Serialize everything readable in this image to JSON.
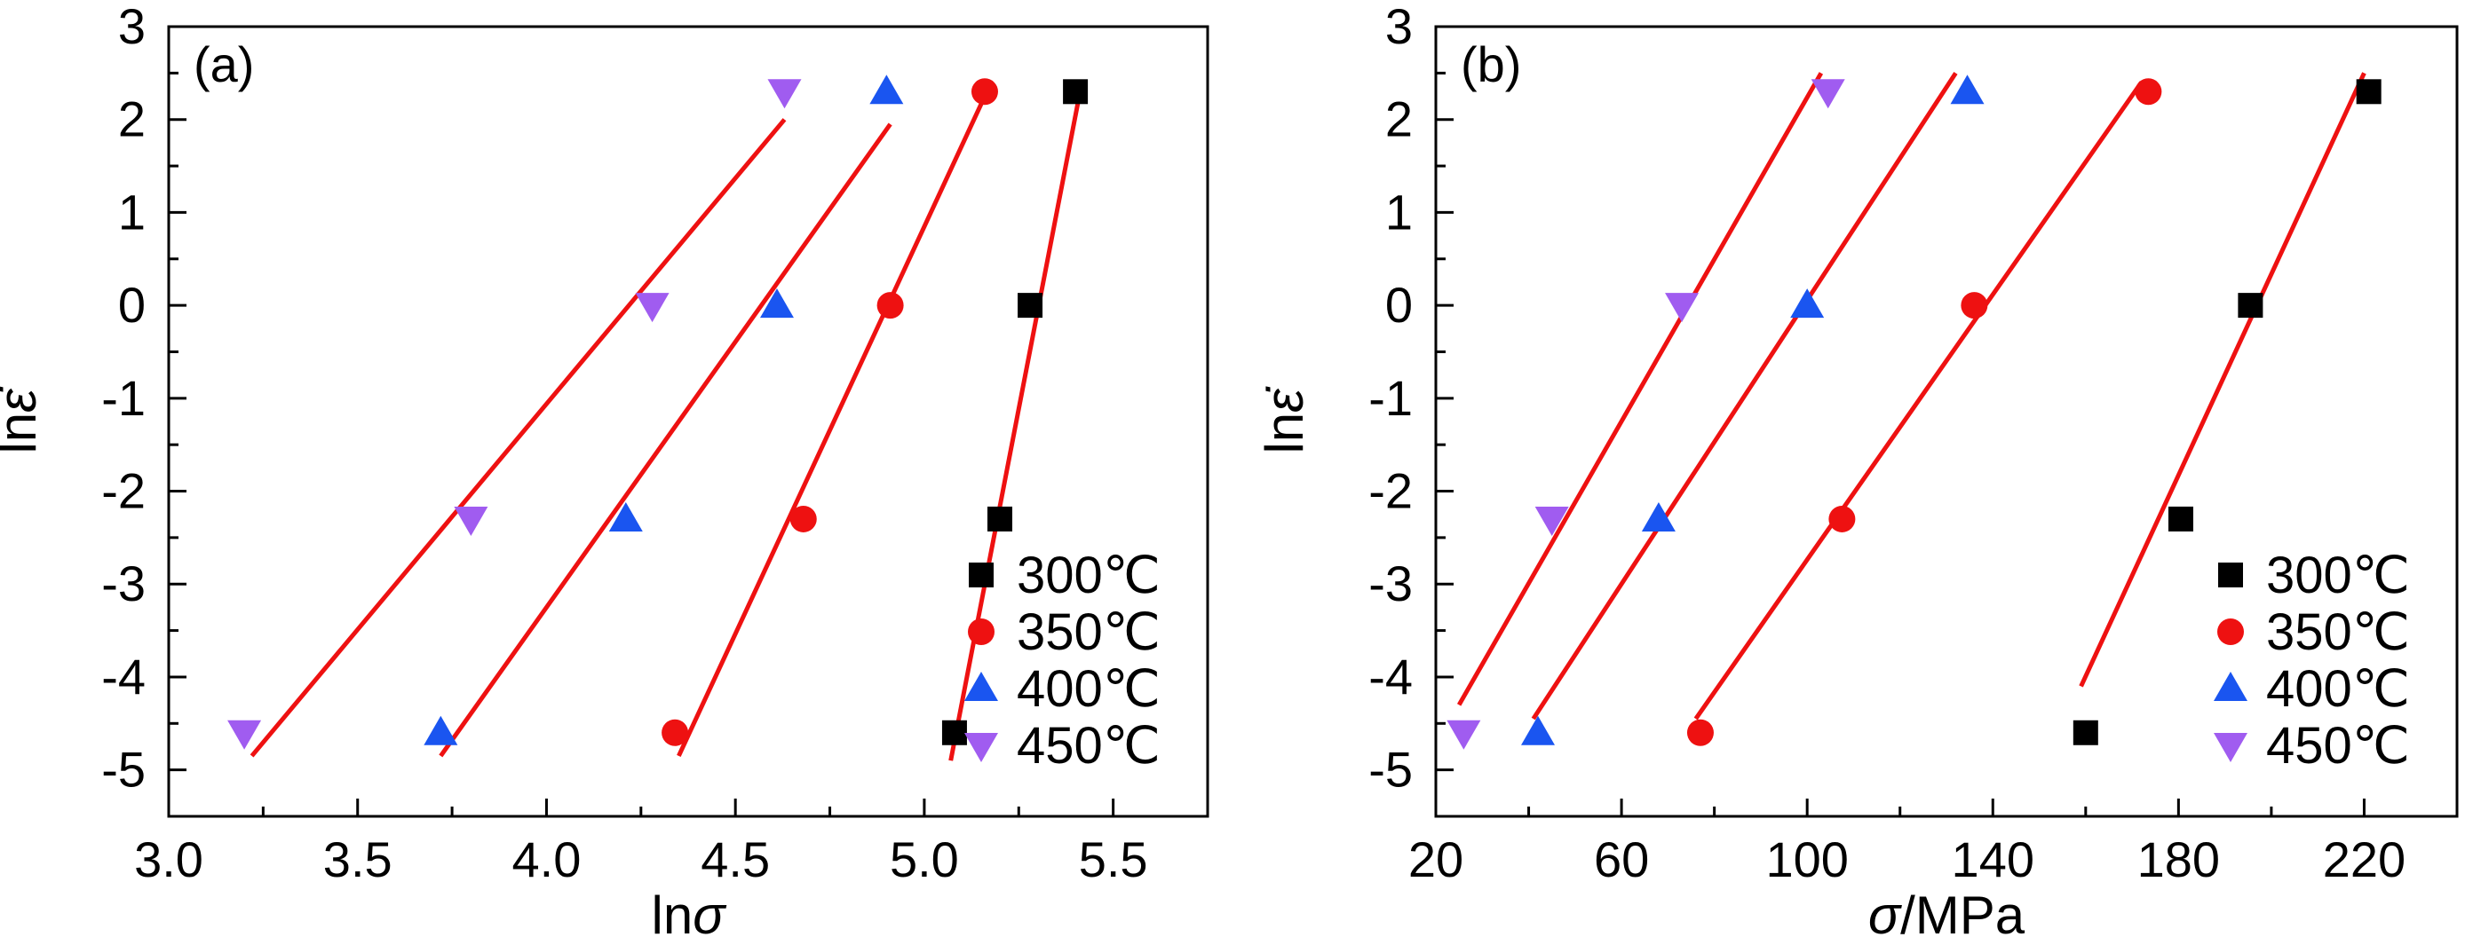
{
  "chart_data": [
    {
      "type": "scatter",
      "panel_label": "(a)",
      "xlabel_main": "ln",
      "xlabel_sym": "σ",
      "xlabel_unit": "",
      "ylabel_main": "ln",
      "ylabel_sym": "ε̇",
      "xlim": [
        3.0,
        5.75
      ],
      "ylim": [
        -5.5,
        3
      ],
      "xticks": [
        3.0,
        3.5,
        4.0,
        4.5,
        5.0,
        5.5
      ],
      "xtick_labels": [
        "3.0",
        "3.5",
        "4.0",
        "4.5",
        "5.0",
        "5.5"
      ],
      "yticks": [
        3,
        2,
        1,
        0,
        -1,
        -2,
        -3,
        -4,
        -5
      ],
      "ytick_labels": [
        "3",
        "2",
        "1",
        "0",
        "-1",
        "-2",
        "-3",
        "-4",
        "-5"
      ],
      "legend_position": "bottom-right",
      "series": [
        {
          "name": "300℃",
          "marker": "square",
          "color": "#000000",
          "points": [
            [
              5.08,
              -4.6
            ],
            [
              5.2,
              -2.3
            ],
            [
              5.28,
              0.0
            ],
            [
              5.4,
              2.3
            ]
          ],
          "fit": [
            [
              5.07,
              -4.9
            ],
            [
              5.41,
              2.25
            ]
          ]
        },
        {
          "name": "350℃",
          "marker": "circle",
          "color": "#ee1111",
          "points": [
            [
              4.34,
              -4.6
            ],
            [
              4.68,
              -2.3
            ],
            [
              4.91,
              0.0
            ],
            [
              5.16,
              2.3
            ]
          ],
          "fit": [
            [
              4.35,
              -4.85
            ],
            [
              5.16,
              2.25
            ]
          ]
        },
        {
          "name": "400℃",
          "marker": "triangle-up",
          "color": "#1a55f0",
          "points": [
            [
              3.72,
              -4.6
            ],
            [
              4.21,
              -2.3
            ],
            [
              4.61,
              0.0
            ],
            [
              4.9,
              2.3
            ]
          ],
          "fit": [
            [
              3.72,
              -4.85
            ],
            [
              4.91,
              1.95
            ]
          ]
        },
        {
          "name": "450℃",
          "marker": "triangle-down",
          "color": "#a05cf0",
          "points": [
            [
              3.2,
              -4.6
            ],
            [
              3.8,
              -2.3
            ],
            [
              4.28,
              0.0
            ],
            [
              4.63,
              2.3
            ]
          ],
          "fit": [
            [
              3.22,
              -4.85
            ],
            [
              4.63,
              2.0
            ]
          ]
        }
      ]
    },
    {
      "type": "scatter",
      "panel_label": "(b)",
      "xlabel_main": "",
      "xlabel_sym": "σ",
      "xlabel_unit": "/MPa",
      "ylabel_main": "ln",
      "ylabel_sym": "ε̇",
      "xlim": [
        20,
        240
      ],
      "ylim": [
        -5.5,
        3
      ],
      "xticks": [
        20,
        60,
        100,
        140,
        180,
        220
      ],
      "xtick_labels": [
        "20",
        "60",
        "100",
        "140",
        "180",
        "220"
      ],
      "yticks": [
        3,
        2,
        1,
        0,
        -1,
        -2,
        -3,
        -4,
        -5
      ],
      "ytick_labels": [
        "3",
        "2",
        "1",
        "0",
        "-1",
        "-2",
        "-3",
        "-4",
        "-5"
      ],
      "legend_position": "bottom-right",
      "series": [
        {
          "name": "300℃",
          "marker": "square",
          "color": "#000000",
          "points": [
            [
              160,
              -4.6
            ],
            [
              180.5,
              -2.3
            ],
            [
              195.5,
              0.0
            ],
            [
              221,
              2.3
            ]
          ],
          "fit": [
            [
              159,
              -4.1
            ],
            [
              220,
              2.5
            ]
          ]
        },
        {
          "name": "350℃",
          "marker": "circle",
          "color": "#ee1111",
          "points": [
            [
              77,
              -4.6
            ],
            [
              107.5,
              -2.3
            ],
            [
              136,
              0.0
            ],
            [
              173.5,
              2.3
            ]
          ],
          "fit": [
            [
              76,
              -4.45
            ],
            [
              172,
              2.4
            ]
          ]
        },
        {
          "name": "400℃",
          "marker": "triangle-up",
          "color": "#1a55f0",
          "points": [
            [
              42,
              -4.6
            ],
            [
              68,
              -2.3
            ],
            [
              100,
              0.0
            ],
            [
              134.5,
              2.3
            ]
          ],
          "fit": [
            [
              41,
              -4.45
            ],
            [
              132,
              2.5
            ]
          ]
        },
        {
          "name": "450℃",
          "marker": "triangle-down",
          "color": "#a05cf0",
          "points": [
            [
              26,
              -4.6
            ],
            [
              45,
              -2.3
            ],
            [
              73,
              0.0
            ],
            [
              104.5,
              2.3
            ]
          ],
          "fit": [
            [
              25,
              -4.3
            ],
            [
              103,
              2.5
            ]
          ]
        }
      ]
    }
  ]
}
